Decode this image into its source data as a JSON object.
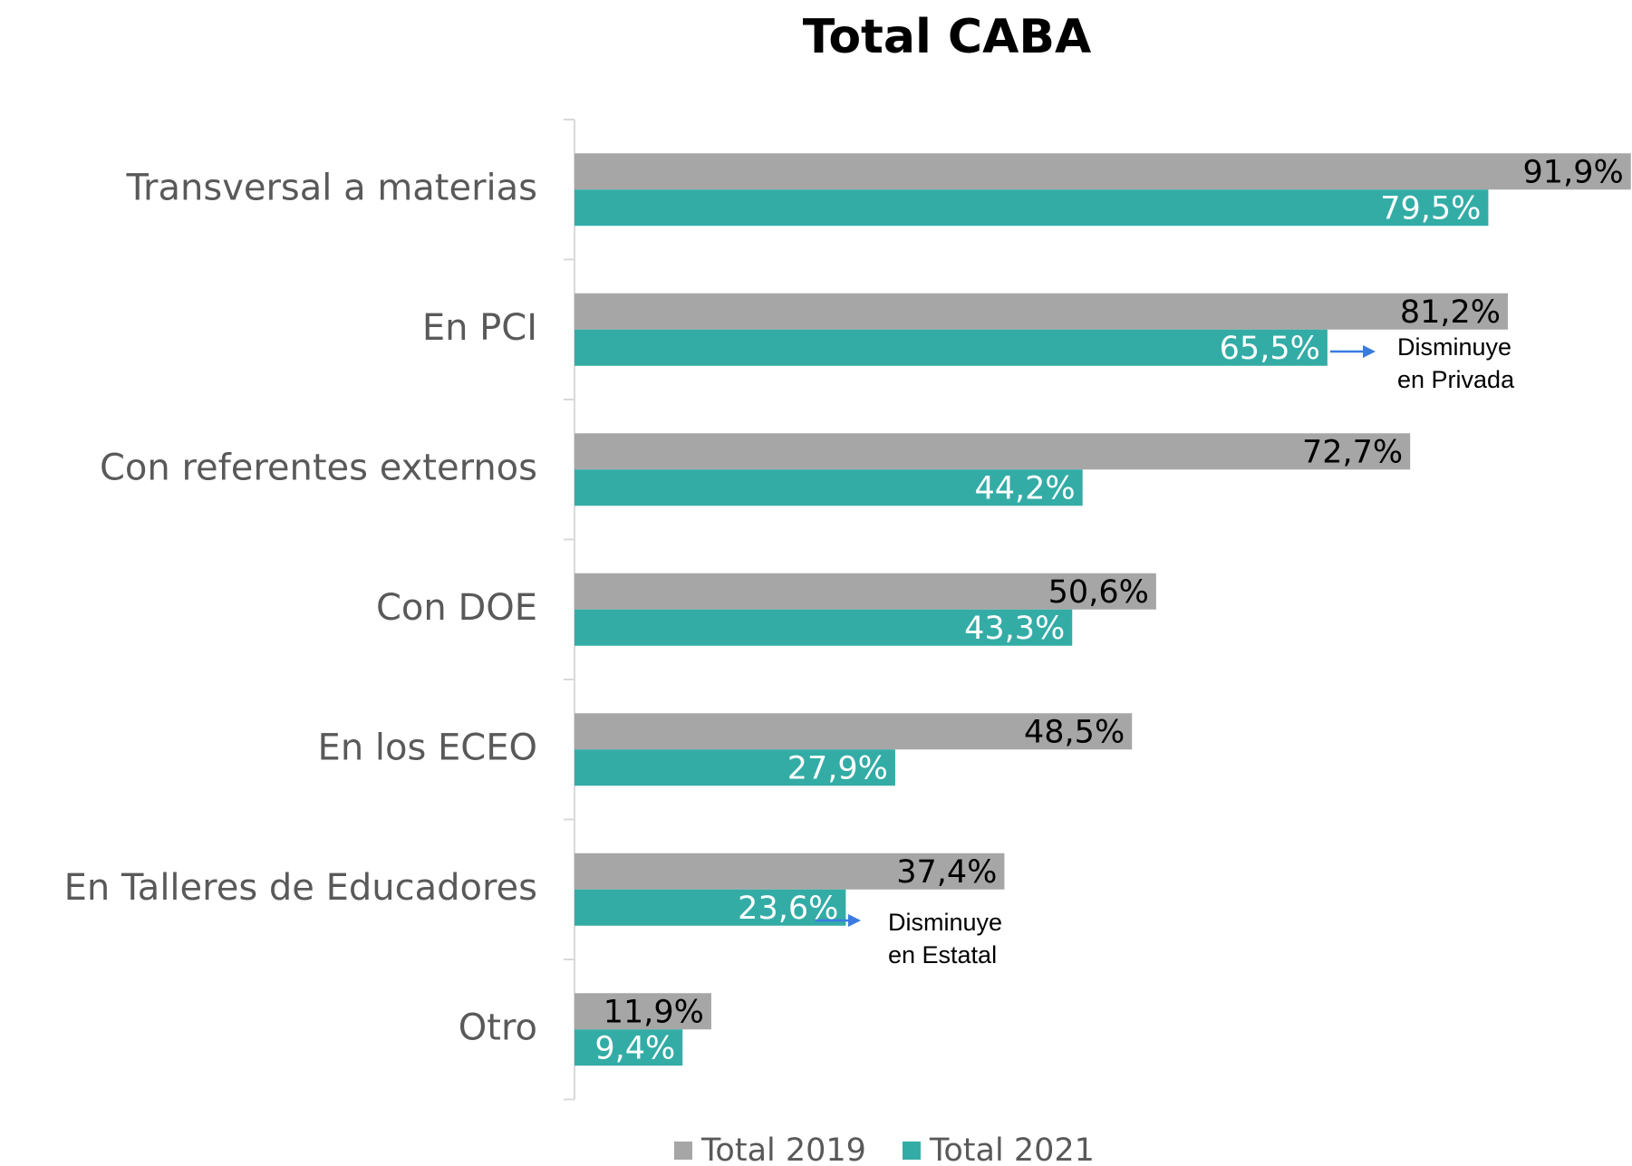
{
  "chart_data": {
    "type": "hbar",
    "title": "Total CABA",
    "categories": [
      "Transversal a materias",
      "En PCI",
      "Con referentes externos",
      "Con DOE",
      "En los ECEO",
      "En Talleres de Educadores",
      "Otro"
    ],
    "series": [
      {
        "name": "Total 2019",
        "color": "#a6a6a6",
        "values": [
          91.9,
          81.2,
          72.7,
          50.6,
          48.5,
          37.4,
          11.9
        ],
        "value_labels": [
          "91,9%",
          "81,2%",
          "72,7%",
          "50,6%",
          "48,5%",
          "37,4%",
          "11,9%"
        ]
      },
      {
        "name": "Total 2021",
        "color": "#33aca6",
        "values": [
          79.5,
          65.5,
          44.2,
          43.3,
          27.9,
          23.6,
          9.4
        ],
        "value_labels": [
          "79,5%",
          "65,5%",
          "44,2%",
          "43,3%",
          "27,9%",
          "23,6%",
          "9,4%"
        ]
      }
    ],
    "xlim": [
      0,
      92
    ],
    "annotations": [
      [
        "Disminuye",
        "en Privada"
      ],
      [
        "Disminuye",
        "en Estatal"
      ]
    ],
    "legend": "bottom"
  }
}
